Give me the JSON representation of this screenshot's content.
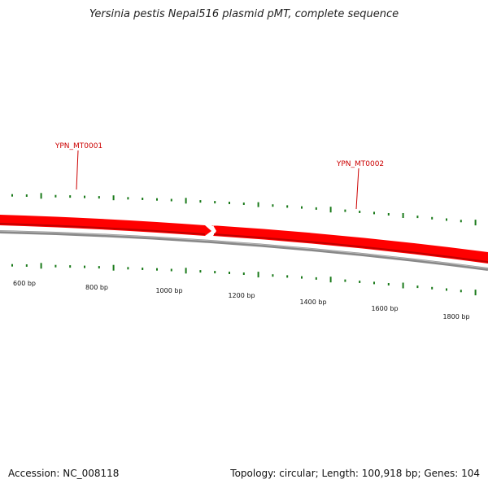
{
  "title": "Yersinia pestis Nepal516 plasmid pMT, complete sequence",
  "footer": {
    "accession": "Accession: NC_008118",
    "summary": "Topology: circular; Length: 100,918 bp; Genes: 104"
  },
  "genes": [
    {
      "id": "YPN_MT0001",
      "strand": "+"
    },
    {
      "id": "YPN_MT0002",
      "strand": "+"
    }
  ],
  "scale_labels": [
    "600 bp",
    "800 bp",
    "1000 bp",
    "1200 bp",
    "1400 bp",
    "1600 bp",
    "1800 bp"
  ],
  "colors": {
    "gene": "#ff0000",
    "gene_dark": "#c00000",
    "backbone": "#888888",
    "gc_tick": "#1a7a1a",
    "label": "#cc0000"
  }
}
